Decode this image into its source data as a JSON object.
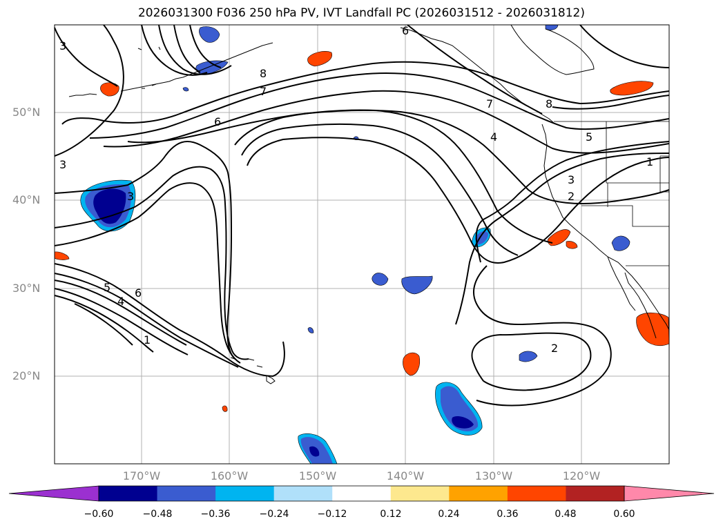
{
  "title": "2026031300 F036 250 hPa PV, IVT Landfall PC (2026031512 - 2026031812)",
  "map": {
    "lon_labels": [
      "170°W",
      "160°W",
      "150°W",
      "140°W",
      "130°W",
      "120°W"
    ],
    "lat_labels": [
      "50°N",
      "40°N",
      "30°N",
      "20°N"
    ],
    "contour_labels": [
      "3",
      "8",
      "7",
      "6",
      "6",
      "3",
      "3",
      "5",
      "4",
      "6",
      "1",
      "7",
      "8",
      "4",
      "5",
      "3",
      "2",
      "1",
      "2"
    ]
  },
  "colorbar": {
    "ticks": [
      "−0.60",
      "−0.48",
      "−0.36",
      "−0.24",
      "−0.12",
      "0.12",
      "0.24",
      "0.36",
      "0.48",
      "0.60"
    ],
    "colors": [
      "#9b30d0",
      "#000090",
      "#3a5cd0",
      "#00b4f0",
      "#b0e0fa",
      "#ffffff",
      "#fde88e",
      "#ffa200",
      "#ff4500",
      "#b22222",
      "#ff88aa"
    ]
  }
}
